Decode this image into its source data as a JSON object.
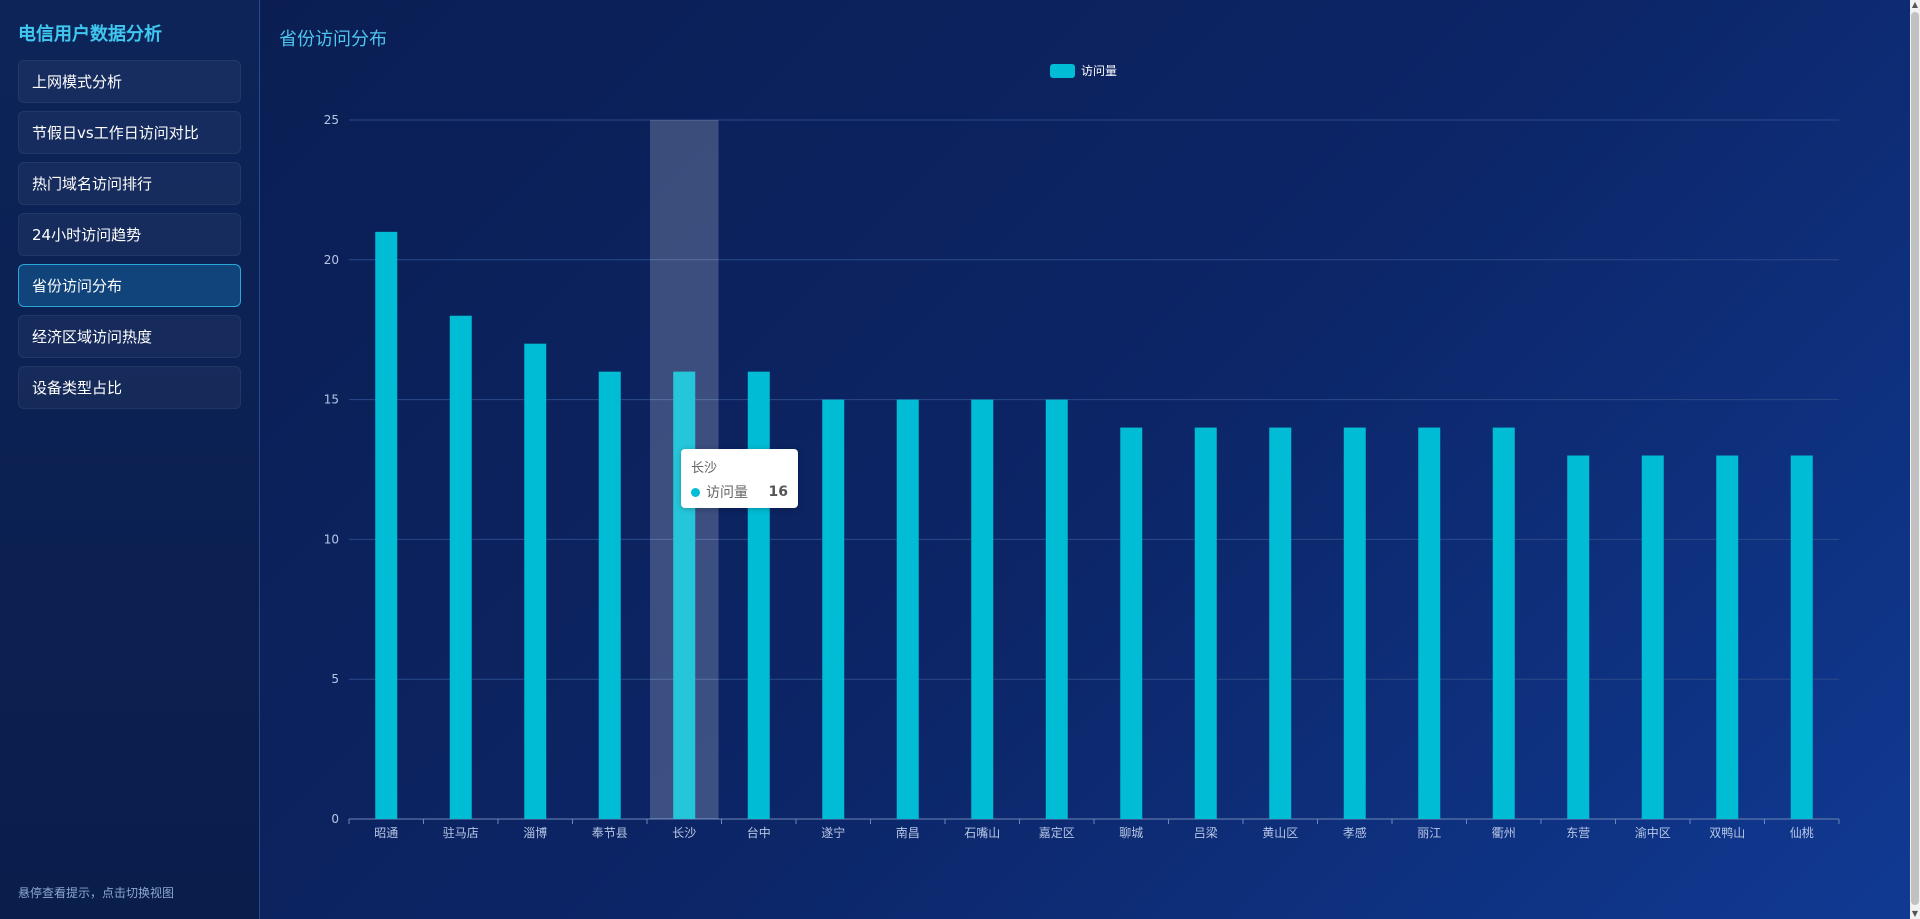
{
  "sidebar": {
    "title": "电信用户数据分析",
    "items": [
      {
        "label": "上网模式分析"
      },
      {
        "label": "节假日vs工作日访问对比"
      },
      {
        "label": "热门域名访问排行"
      },
      {
        "label": "24小时访问趋势"
      },
      {
        "label": "省份访问分布",
        "active": true
      },
      {
        "label": "经济区域访问热度"
      },
      {
        "label": "设备类型占比"
      }
    ],
    "hint": "悬停查看提示，点击切换视图"
  },
  "main": {
    "title": "省份访问分布"
  },
  "tooltip": {
    "title": "长沙",
    "series": "访问量",
    "value": "16"
  },
  "colors": {
    "bar": "#00bcd4",
    "bar_highlight": "#26c6da",
    "accent": "#3fc7ef"
  },
  "chart_data": {
    "type": "bar",
    "title": "",
    "xlabel": "",
    "ylabel": "",
    "categories": [
      "昭通",
      "驻马店",
      "淄博",
      "奉节县",
      "长沙",
      "台中",
      "遂宁",
      "南昌",
      "石嘴山",
      "嘉定区",
      "聊城",
      "吕梁",
      "黄山区",
      "孝感",
      "丽江",
      "衢州",
      "东营",
      "渝中区",
      "双鸭山",
      "仙桃"
    ],
    "series": [
      {
        "name": "访问量",
        "values": [
          21,
          18,
          17,
          16,
          16,
          16,
          15,
          15,
          15,
          15,
          14,
          14,
          14,
          14,
          14,
          14,
          13,
          13,
          13,
          13
        ]
      }
    ],
    "ylim": [
      0,
      25
    ],
    "yticks": [
      0,
      5,
      10,
      15,
      20,
      25
    ],
    "grid": true,
    "legend": "top-center",
    "highlighted_category": "长沙"
  }
}
